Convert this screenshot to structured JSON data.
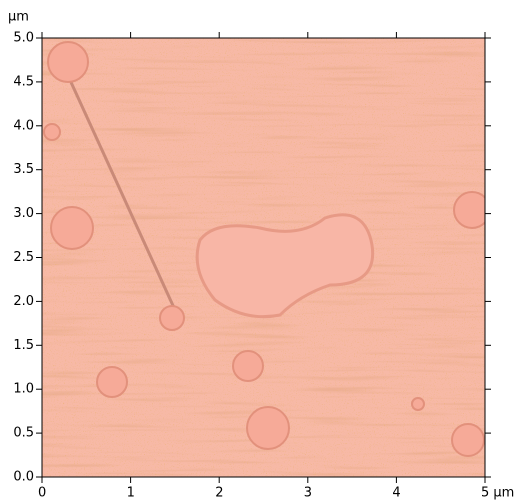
{
  "chart_data": {
    "type": "image",
    "y_label": "µm",
    "xlim": [
      0,
      5
    ],
    "ylim": [
      0,
      5
    ],
    "xticks": [
      0,
      1,
      2,
      3,
      4,
      {
        "value": 5,
        "label": "5 µm"
      }
    ],
    "yticks": [
      {
        "value": 0,
        "label": "0.0"
      },
      {
        "value": 0.5,
        "label": "0.5"
      },
      {
        "value": 1,
        "label": "1.0"
      },
      {
        "value": 1.5,
        "label": "1.5"
      },
      {
        "value": 2,
        "label": "2.0"
      },
      {
        "value": 2.5,
        "label": "2.5"
      },
      {
        "value": 3,
        "label": "3.0"
      },
      {
        "value": 3.5,
        "label": "3.5"
      },
      {
        "value": 4,
        "label": "4.0"
      },
      {
        "value": 4.5,
        "label": "4.5"
      },
      {
        "value": 5,
        "label": "5.0"
      }
    ]
  }
}
